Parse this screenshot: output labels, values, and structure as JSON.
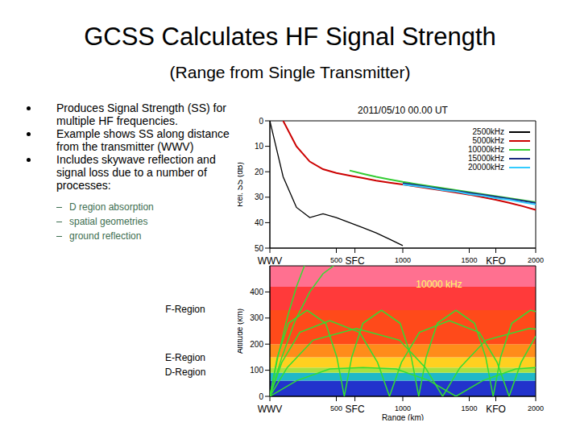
{
  "slide": {
    "title": "GCSS Calculates HF Signal Strength",
    "subtitle": "(Range from Single Transmitter)",
    "bullets": [
      "Produces Signal Strength (SS) for multiple HF frequencies.",
      "Example shows SS along distance from the transmitter (WWV)",
      "Includes skywave reflection and signal loss due to a number of processes:"
    ],
    "sub_bullets": [
      "D region absorption",
      "spatial geometries",
      "ground reflection"
    ],
    "region_labels": [
      "F-Region",
      "E-Region",
      "D-Region"
    ]
  },
  "chart_data": [
    {
      "type": "line",
      "title": "2011/05/10 00.00 UT",
      "y_label": "Rel. SS (dB)",
      "x": [
        0,
        100,
        200,
        300,
        400,
        500,
        600,
        700,
        800,
        900,
        1000,
        1100,
        1200,
        1300,
        1400,
        1500,
        1600,
        1700,
        1800,
        1900,
        2000
      ],
      "xlim": [
        0,
        2000
      ],
      "xticks": [
        500,
        1000,
        1500,
        2000
      ],
      "stations": [
        {
          "name": "WWV",
          "x": 0
        },
        {
          "name": "SFC",
          "x": 640
        },
        {
          "name": "KFO",
          "x": 1700
        }
      ],
      "ylim": [
        50,
        0
      ],
      "yticks": [
        0,
        10,
        20,
        30,
        40,
        50
      ],
      "legend": "upper right",
      "series": [
        {
          "name": "2500kHz",
          "color": "#000000",
          "values": [
            0,
            22,
            34,
            38,
            36.5,
            38,
            40,
            42,
            44,
            46.5,
            49,
            null,
            null,
            null,
            null,
            null,
            null,
            null,
            null,
            null,
            null
          ]
        },
        {
          "name": "5000kHz",
          "color": "#cc0000",
          "values": [
            null,
            0,
            10,
            16,
            19,
            20.5,
            21.5,
            22.5,
            23.5,
            24.3,
            25,
            25.8,
            26.6,
            27.4,
            28.2,
            29,
            30,
            31,
            32.2,
            33.5,
            35
          ]
        },
        {
          "name": "10000kHz",
          "color": "#33cc33",
          "values": [
            null,
            null,
            null,
            null,
            null,
            null,
            19.5,
            20.8,
            22,
            23,
            24,
            24.8,
            25.6,
            26.4,
            27.2,
            28,
            28.8,
            29.6,
            30.4,
            31.2,
            32
          ]
        },
        {
          "name": "15000kHz",
          "color": "#1a2a80",
          "values": [
            null,
            null,
            null,
            null,
            null,
            null,
            null,
            null,
            null,
            null,
            24.5,
            25.2,
            26,
            26.8,
            27.5,
            28.3,
            29,
            29.8,
            30.6,
            31.4,
            32.3
          ]
        },
        {
          "name": "20000kHz",
          "color": "#33ccff",
          "values": [
            null,
            null,
            null,
            null,
            null,
            null,
            null,
            null,
            null,
            null,
            25,
            25.6,
            26.3,
            27.2,
            27.8,
            28.8,
            29.4,
            30.4,
            31,
            32,
            32.8
          ]
        }
      ]
    },
    {
      "type": "line",
      "title": "10000 kHz",
      "x_label": "Range (km)",
      "y_label": "Altitude (km)",
      "xlim": [
        0,
        2000
      ],
      "xticks": [
        500,
        1000,
        1500,
        2000
      ],
      "stations": [
        {
          "name": "WWV",
          "x": 0
        },
        {
          "name": "SFC",
          "x": 640
        },
        {
          "name": "KFO",
          "x": 1700
        }
      ],
      "ylim": [
        0,
        500
      ],
      "yticks": [
        0,
        100,
        200,
        300,
        400
      ],
      "bands": [
        {
          "from": 0,
          "to": 60,
          "color": "#2233cc"
        },
        {
          "from": 60,
          "to": 90,
          "color": "#20b8c8"
        },
        {
          "from": 90,
          "to": 110,
          "color": "#a8e040"
        },
        {
          "from": 110,
          "to": 150,
          "color": "#ffd020"
        },
        {
          "from": 150,
          "to": 200,
          "color": "#ff8c1a"
        },
        {
          "from": 200,
          "to": 330,
          "color": "#ff4a1a"
        },
        {
          "from": 330,
          "to": 420,
          "color": "#ff3a3a"
        },
        {
          "from": 420,
          "to": 500,
          "color": "#ff7090"
        }
      ],
      "series": [
        {
          "color": "#33dd33",
          "points": [
            [
              0,
              0
            ],
            [
              60,
              150
            ],
            [
              130,
              300
            ],
            [
              200,
              420
            ],
            [
              260,
              500
            ]
          ]
        },
        {
          "color": "#33dd33",
          "points": [
            [
              0,
              0
            ],
            [
              90,
              150
            ],
            [
              190,
              290
            ],
            [
              300,
              400
            ],
            [
              400,
              470
            ],
            [
              480,
              500
            ]
          ]
        },
        {
          "color": "#33dd33",
          "points": [
            [
              0,
              0
            ],
            [
              56,
              150
            ],
            [
              140,
              280
            ],
            [
              280,
              330
            ],
            [
              420,
              280
            ],
            [
              504,
              150
            ],
            [
              560,
              0
            ],
            [
              616,
              150
            ],
            [
              700,
              280
            ],
            [
              840,
              330
            ],
            [
              980,
              280
            ],
            [
              1064,
              150
            ],
            [
              1120,
              0
            ],
            [
              1176,
              150
            ],
            [
              1260,
              280
            ],
            [
              1400,
              330
            ],
            [
              1540,
              280
            ],
            [
              1624,
              150
            ],
            [
              1680,
              0
            ],
            [
              1736,
              150
            ],
            [
              1820,
              280
            ],
            [
              1960,
              330
            ],
            [
              2000,
              325
            ]
          ]
        },
        {
          "color": "#33dd33",
          "points": [
            [
              0,
              0
            ],
            [
              90,
              130
            ],
            [
              225,
              245
            ],
            [
              450,
              290
            ],
            [
              675,
              245
            ],
            [
              810,
              130
            ],
            [
              900,
              0
            ],
            [
              990,
              130
            ],
            [
              1125,
              245
            ],
            [
              1350,
              290
            ],
            [
              1575,
              245
            ],
            [
              1710,
              130
            ],
            [
              1800,
              0
            ],
            [
              1890,
              130
            ],
            [
              2000,
              230
            ]
          ]
        },
        {
          "color": "#33dd33",
          "points": [
            [
              0,
              0
            ],
            [
              130,
              110
            ],
            [
              325,
              215
            ],
            [
              650,
              260
            ],
            [
              975,
              215
            ],
            [
              1170,
              110
            ],
            [
              1300,
              0
            ],
            [
              1430,
              110
            ],
            [
              1625,
              215
            ],
            [
              1950,
              260
            ],
            [
              2000,
              258
            ]
          ]
        },
        {
          "color": "#33dd33",
          "points": [
            [
              0,
              0
            ],
            [
              200,
              60
            ],
            [
              450,
              105
            ],
            [
              700,
              110
            ],
            [
              950,
              105
            ],
            [
              1200,
              60
            ],
            [
              1400,
              0
            ],
            [
              1600,
              60
            ],
            [
              1850,
              105
            ],
            [
              2000,
              110
            ]
          ]
        }
      ]
    }
  ]
}
